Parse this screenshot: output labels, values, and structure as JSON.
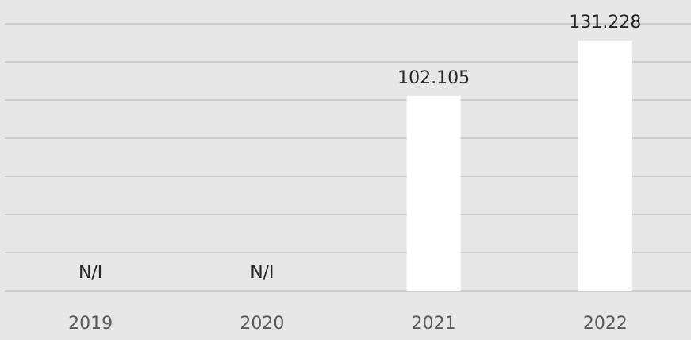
{
  "chart_data": {
    "type": "bar",
    "categories": [
      "2019",
      "2020",
      "2021",
      "2022"
    ],
    "values": [
      null,
      null,
      102.105,
      131.228
    ],
    "value_labels": [
      "N/I",
      "N/I",
      "102.105",
      "131.228"
    ],
    "color": "#ffffff",
    "ylim": [
      0,
      140
    ],
    "yticks": [
      0,
      20,
      40,
      60,
      80,
      100,
      120,
      140
    ],
    "grid": true
  }
}
